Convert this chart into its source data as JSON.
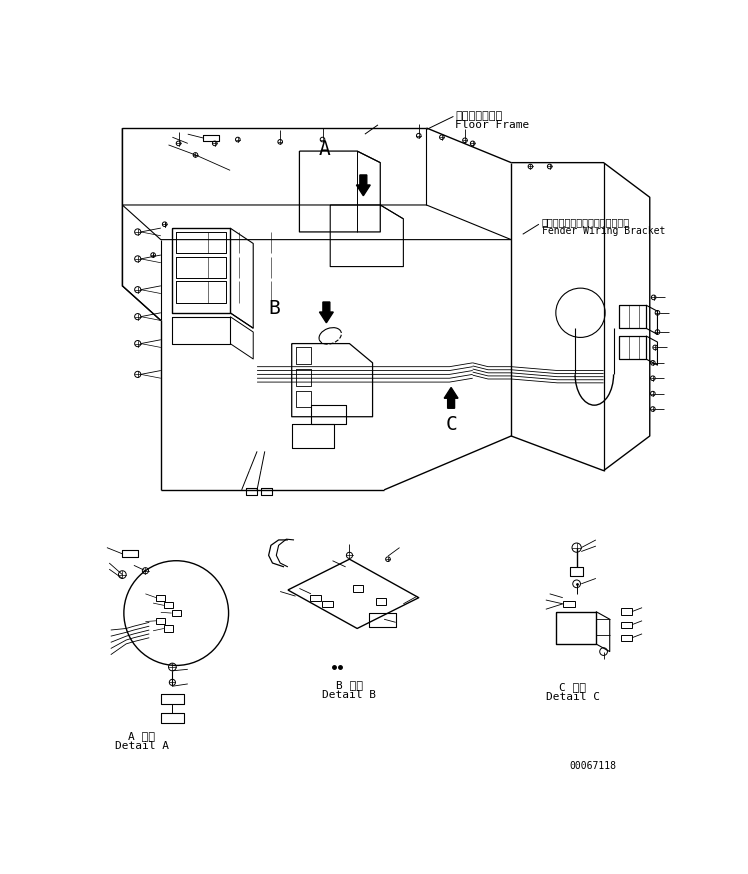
{
  "bg_color": "#ffffff",
  "lc": "#000000",
  "fig_width": 7.48,
  "fig_height": 8.74,
  "dpi": 100,
  "title_jp": "フロアフレーム",
  "title_en": "Floor Frame",
  "label2_jp": "フェンダワイヤリングブラケット",
  "label2_en": "Fender Wiring Bracket",
  "detail_a_jp": "A 詳細",
  "detail_a_en": "Detail A",
  "detail_b_jp": "B 詳細",
  "detail_b_en": "Detail B",
  "detail_c_jp": "C 詳細",
  "detail_c_en": "Detail C",
  "doc_number": "00067118",
  "fs": 7,
  "fm": "monospace"
}
